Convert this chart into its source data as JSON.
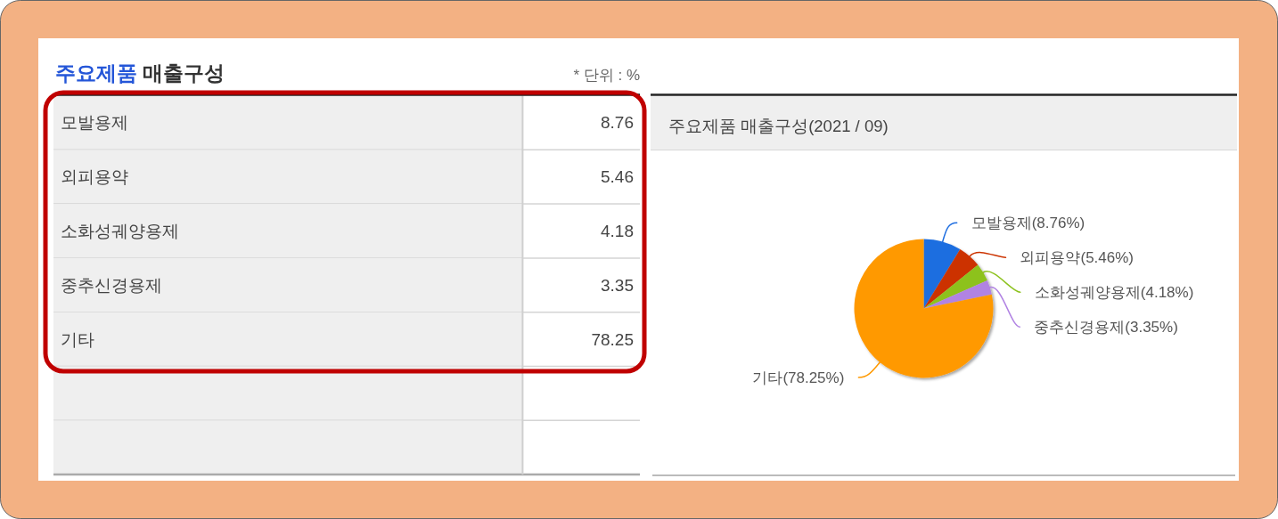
{
  "chart_data": [
    {
      "type": "other",
      "title": "주요제품 매출구성",
      "annotations": [
        "* 단위 : %"
      ],
      "categories": [
        "모발용제",
        "외피용약",
        "소화성궤양용제",
        "중추신경용제",
        "기타"
      ],
      "values": [
        8.76,
        5.46,
        4.18,
        3.35,
        78.25
      ],
      "data_labels": true
    },
    {
      "type": "pie",
      "title": "주요제품 매출구성(2021 / 09)",
      "categories": [
        "모발용제",
        "외피용약",
        "소화성궤양용제",
        "중추신경용제",
        "기타"
      ],
      "values": [
        8.76,
        5.46,
        4.18,
        3.35,
        78.25
      ],
      "colors": [
        "#1f6ee0",
        "#cc3300",
        "#8dc21f",
        "#b183e3",
        "#ff9900"
      ],
      "value_labels": [
        "(8.76%)",
        "(5.46%)",
        "(4.18%)",
        "(3.35%)",
        "(78.25%)"
      ]
    }
  ]
}
